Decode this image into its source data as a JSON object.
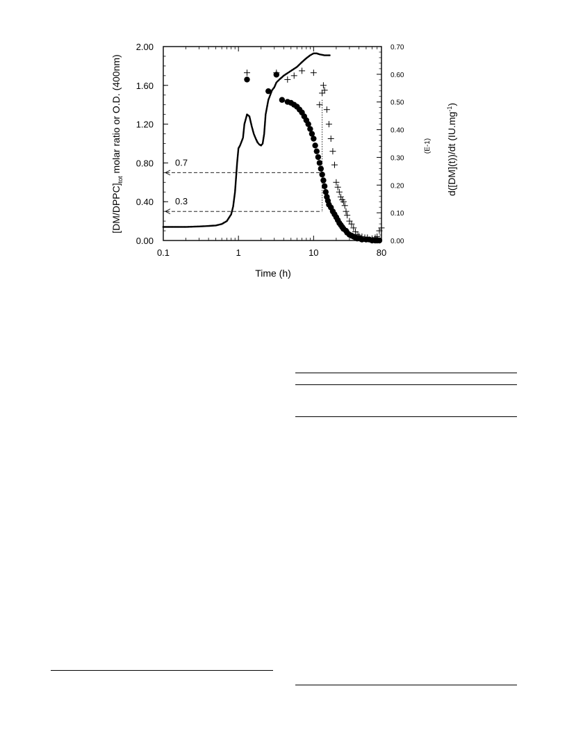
{
  "chart_data": {
    "type": "scatter",
    "xlabel": "Time (h)",
    "ylabel_main": "[DM/DPPC]",
    "ylabel_sub": "tot",
    "ylabel_rest": " molar ratio or O.D. (400nm)",
    "y2label_main": "d([DM](t))/dt (IU.mg",
    "y2label_sup": "-1",
    "y2label_end": ")",
    "y2label_scale": "(E-1)",
    "x_scale": "log",
    "xlim": [
      0.1,
      80
    ],
    "ylim": [
      0,
      2
    ],
    "y2lim": [
      0,
      0.7
    ],
    "x_ticks": [
      {
        "value": 0.1,
        "label": "0.1"
      },
      {
        "value": 1,
        "label": "1"
      },
      {
        "value": 10,
        "label": "10"
      },
      {
        "value": 80,
        "label": "80"
      }
    ],
    "y_ticks": [
      {
        "value": 0,
        "label": "0.00"
      },
      {
        "value": 0.4,
        "label": "0.40"
      },
      {
        "value": 0.8,
        "label": "0.80"
      },
      {
        "value": 1.2,
        "label": "1.20"
      },
      {
        "value": 1.6,
        "label": "1.60"
      },
      {
        "value": 2.0,
        "label": "2.00"
      }
    ],
    "y2_ticks": [
      {
        "value": 0,
        "label": "0.00"
      },
      {
        "value": 0.1,
        "label": "0.10"
      },
      {
        "value": 0.2,
        "label": "0.20"
      },
      {
        "value": 0.3,
        "label": "0.30"
      },
      {
        "value": 0.4,
        "label": "0.40"
      },
      {
        "value": 0.5,
        "label": "0.50"
      },
      {
        "value": 0.6,
        "label": "0.60"
      },
      {
        "value": 0.7,
        "label": "0.70"
      }
    ],
    "reference_lines": [
      {
        "label": "0.7",
        "y": 0.7,
        "x_end": 13
      },
      {
        "label": "0.3",
        "y": 0.3,
        "x_end": 13
      }
    ],
    "vertical_reference": {
      "x": 13,
      "y_top": 1.45
    },
    "series": [
      {
        "marker": "line-dots",
        "axis": "left",
        "color": "#000000",
        "points": [
          [
            0.1,
            0.14
          ],
          [
            0.15,
            0.14
          ],
          [
            0.2,
            0.14
          ],
          [
            0.3,
            0.145
          ],
          [
            0.4,
            0.15
          ],
          [
            0.5,
            0.155
          ],
          [
            0.6,
            0.17
          ],
          [
            0.7,
            0.2
          ],
          [
            0.8,
            0.27
          ],
          [
            0.85,
            0.35
          ],
          [
            0.9,
            0.5
          ],
          [
            0.93,
            0.65
          ],
          [
            0.96,
            0.8
          ],
          [
            1.0,
            0.95
          ],
          [
            1.05,
            0.98
          ],
          [
            1.1,
            1.02
          ],
          [
            1.15,
            1.06
          ],
          [
            1.2,
            1.2
          ],
          [
            1.3,
            1.3
          ],
          [
            1.4,
            1.28
          ],
          [
            1.5,
            1.18
          ],
          [
            1.6,
            1.1
          ],
          [
            1.7,
            1.05
          ],
          [
            1.8,
            1.01
          ],
          [
            1.9,
            0.99
          ],
          [
            2.0,
            0.98
          ],
          [
            2.1,
            1.0
          ],
          [
            2.2,
            1.1
          ],
          [
            2.3,
            1.3
          ],
          [
            2.5,
            1.45
          ],
          [
            2.8,
            1.55
          ],
          [
            3.0,
            1.58
          ],
          [
            3.2,
            1.63
          ],
          [
            3.5,
            1.66
          ],
          [
            4,
            1.7
          ],
          [
            5,
            1.75
          ],
          [
            6,
            1.79
          ],
          [
            7,
            1.84
          ],
          [
            8,
            1.88
          ],
          [
            9,
            1.91
          ],
          [
            10,
            1.93
          ],
          [
            11,
            1.93
          ],
          [
            12,
            1.92
          ],
          [
            14,
            1.91
          ],
          [
            17,
            1.91
          ]
        ]
      },
      {
        "marker": "filled-circle",
        "axis": "left",
        "color": "#000000",
        "points": [
          [
            1.3,
            1.66
          ],
          [
            2.5,
            1.54
          ],
          [
            3.2,
            1.71
          ],
          [
            3.8,
            1.45
          ],
          [
            4.5,
            1.43
          ],
          [
            5.0,
            1.42
          ],
          [
            5.5,
            1.4
          ],
          [
            6.0,
            1.38
          ],
          [
            6.5,
            1.35
          ],
          [
            7.0,
            1.32
          ],
          [
            7.5,
            1.28
          ],
          [
            8.0,
            1.24
          ],
          [
            8.5,
            1.2
          ],
          [
            9.0,
            1.15
          ],
          [
            9.5,
            1.1
          ],
          [
            10,
            1.05
          ],
          [
            10.5,
            0.98
          ],
          [
            11,
            0.92
          ],
          [
            11.5,
            0.86
          ],
          [
            12,
            0.8
          ],
          [
            12.5,
            0.74
          ],
          [
            13,
            0.68
          ],
          [
            13.5,
            0.62
          ],
          [
            14,
            0.56
          ],
          [
            14.5,
            0.5
          ],
          [
            15,
            0.45
          ],
          [
            15.5,
            0.41
          ],
          [
            16,
            0.37
          ],
          [
            17,
            0.34
          ],
          [
            18,
            0.3
          ],
          [
            19,
            0.27
          ],
          [
            20,
            0.24
          ],
          [
            21,
            0.21
          ],
          [
            22,
            0.18
          ],
          [
            23,
            0.16
          ],
          [
            24,
            0.14
          ],
          [
            25,
            0.12
          ],
          [
            27,
            0.1
          ],
          [
            28,
            0.08
          ],
          [
            30,
            0.06
          ],
          [
            32,
            0.05
          ],
          [
            34,
            0.04
          ],
          [
            36,
            0.03
          ],
          [
            38,
            0.02
          ],
          [
            41,
            0.02
          ],
          [
            44,
            0.01
          ],
          [
            50,
            0.01
          ],
          [
            55,
            0.01
          ],
          [
            60,
            0.0
          ],
          [
            66,
            0.0
          ],
          [
            70,
            0.0
          ],
          [
            75,
            0.0
          ]
        ]
      },
      {
        "marker": "plus",
        "axis": "left",
        "color": "#000000",
        "points": [
          [
            1.3,
            1.73
          ],
          [
            3.2,
            1.73
          ],
          [
            4.5,
            1.66
          ],
          [
            5.5,
            1.7
          ],
          [
            7.0,
            1.75
          ],
          [
            10,
            1.73
          ],
          [
            12,
            1.4
          ],
          [
            13,
            1.52
          ],
          [
            13.5,
            1.6
          ],
          [
            14,
            1.55
          ],
          [
            15,
            1.35
          ],
          [
            16,
            1.2
          ],
          [
            17,
            1.05
          ],
          [
            18,
            0.92
          ],
          [
            19,
            0.78
          ],
          [
            20,
            0.6
          ],
          [
            21,
            0.55
          ],
          [
            22,
            0.5
          ],
          [
            23,
            0.45
          ],
          [
            24,
            0.42
          ],
          [
            25,
            0.4
          ],
          [
            26,
            0.36
          ],
          [
            27,
            0.3
          ],
          [
            28,
            0.26
          ],
          [
            30,
            0.2
          ],
          [
            32,
            0.17
          ],
          [
            34,
            0.13
          ],
          [
            36,
            0.09
          ],
          [
            38,
            0.06
          ],
          [
            40,
            0.05
          ],
          [
            44,
            0.04
          ],
          [
            48,
            0.03
          ],
          [
            52,
            0.03
          ],
          [
            60,
            0.02
          ],
          [
            66,
            0.03
          ],
          [
            70,
            0.04
          ],
          [
            75,
            0.1
          ],
          [
            80,
            0.13
          ]
        ]
      }
    ],
    "grid": false
  },
  "doc": {
    "rules": [
      {
        "name": "rule-right-1"
      },
      {
        "name": "rule-right-2"
      },
      {
        "name": "rule-right-3"
      },
      {
        "name": "rule-left-bottom"
      },
      {
        "name": "rule-right-bottom"
      }
    ]
  }
}
